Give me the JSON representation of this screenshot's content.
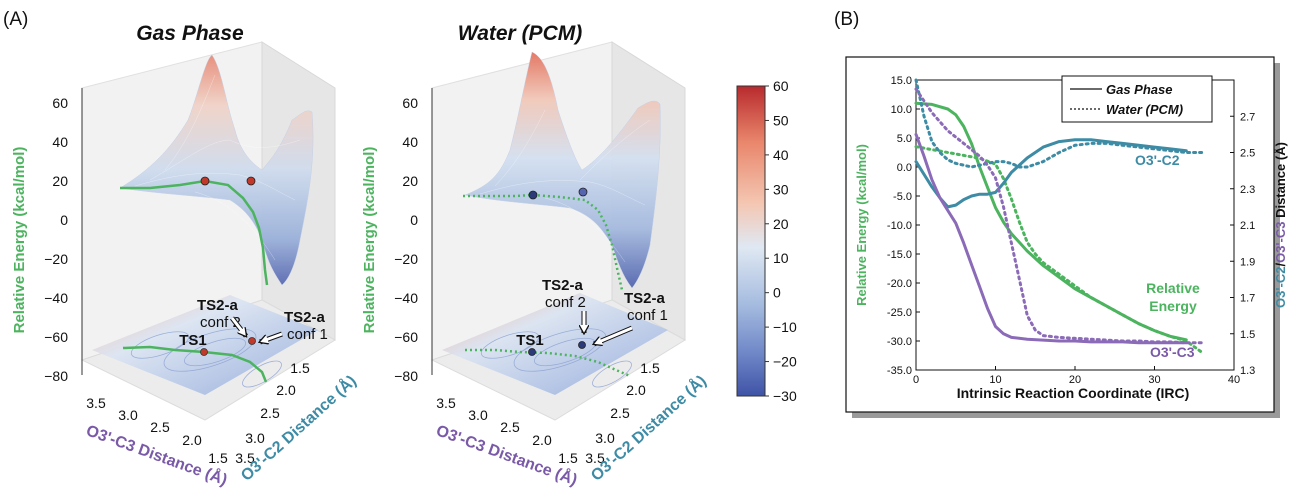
{
  "panel_labels": {
    "a": "(A)",
    "b": "(B)"
  },
  "colors": {
    "energy": "#4cb35f",
    "c2": "#3d8ba5",
    "c3": "#8b6bb8",
    "marker": "#c0392b",
    "marker_water": "#2d3a7a",
    "cmap_low": "#3f53a6",
    "cmap_mid": "#dfe8f3",
    "cmap_high": "#c0242a"
  },
  "chart_data": [
    {
      "type": "surface3d",
      "title": "Gas Phase",
      "ylabel": "Relative Energy (kcal/mol)",
      "zticks": [
        "60",
        "40",
        "20",
        "0",
        "−20",
        "−40",
        "−60",
        "−80"
      ],
      "zlim": [
        -80,
        60
      ],
      "axis_c3": {
        "label": "O3'-C3 Distance (Å)",
        "ticks": [
          "3.5",
          "3.0",
          "2.5",
          "2.0",
          "1.5"
        ]
      },
      "axis_c2": {
        "label": "O3'-C2 Distance (Å)",
        "ticks": [
          "3.5",
          "3.0",
          "2.5",
          "2.0",
          "1.5"
        ]
      },
      "annotations": {
        "ts1": "TS1",
        "ts2_conf2_a": "TS2-a",
        "ts2_conf2_b": "conf 2",
        "ts2_conf1_a": "TS2-a",
        "ts2_conf1_b": "conf 1"
      }
    },
    {
      "type": "surface3d",
      "title": "Water (PCM)",
      "ylabel": "Relative Energy (kcal/mol)",
      "zticks": [
        "60",
        "40",
        "20",
        "0",
        "−20",
        "−40",
        "−60",
        "−80"
      ],
      "zlim": [
        -80,
        60
      ],
      "axis_c3": {
        "label": "O3'-C3 Distance (Å)",
        "ticks": [
          "3.5",
          "3.0",
          "2.5",
          "2.0",
          "1.5"
        ]
      },
      "axis_c2": {
        "label": "O3'-C2 Distance (Å)",
        "ticks": [
          "3.5",
          "3.0",
          "2.5",
          "2.0",
          "1.5"
        ]
      },
      "annotations": {
        "ts1": "TS1",
        "ts2_conf2_a": "TS2-a",
        "ts2_conf2_b": "conf 2",
        "ts2_conf1_a": "TS2-a",
        "ts2_conf1_b": "conf 1"
      }
    },
    {
      "type": "colorbar",
      "range": [
        -30,
        60
      ],
      "ticks": [
        60,
        50,
        40,
        30,
        20,
        10,
        0,
        -10,
        -20,
        -30
      ],
      "tick_labels": [
        "60",
        "50",
        "40",
        "30",
        "20",
        "10",
        "0",
        "−10",
        "−20",
        "−30"
      ]
    },
    {
      "type": "line",
      "xlabel": "Intrinsic Reaction Coordinate (IRC)",
      "ylabel_left": "Relative Energy (kcal/mol)",
      "ylabel_right_parts": [
        "O3'-C2",
        "/",
        "O3'-C3",
        " Distance (Å)"
      ],
      "xlim": [
        0,
        40
      ],
      "xticks": [
        0,
        10,
        20,
        30,
        40
      ],
      "ylim_left": [
        -35,
        15
      ],
      "yticks_left": [
        15,
        10,
        5,
        0,
        -5,
        -10,
        -15,
        -20,
        -25,
        -30,
        -35
      ],
      "ytick_labels_left": [
        "15.0",
        "10.0",
        "5.0",
        "0.0",
        "-5.0",
        "-10.0",
        "-15.0",
        "-20.0",
        "-25.0",
        "-30.0",
        "-35.0"
      ],
      "ylim_right": [
        1.3,
        2.9
      ],
      "yticks_right": [
        2.7,
        2.5,
        2.3,
        2.1,
        1.9,
        1.7,
        1.5,
        1.3
      ],
      "ytick_labels_right": [
        "2.7",
        "2.5",
        "2.3",
        "2.1",
        "1.9",
        "1.7",
        "1.5",
        "1.3"
      ],
      "legend": {
        "position": "top-right",
        "solid": "Gas Phase",
        "dotted": "Water (PCM)"
      },
      "labels": {
        "c2": "O3'-C2",
        "energy_1": "Relative",
        "energy_2": "Energy",
        "c3": "O3'-C3"
      },
      "series": [
        {
          "key": "energy_gas",
          "axis": "left",
          "style": "solid",
          "color": "energy",
          "x": [
            0,
            2,
            4,
            5,
            6,
            7,
            8,
            9,
            10,
            11,
            12,
            13,
            14,
            16,
            18,
            20,
            22,
            24,
            26,
            28,
            30,
            32,
            34
          ],
          "y": [
            11,
            10.8,
            10,
            9,
            7,
            4,
            0,
            -3.5,
            -7,
            -9.5,
            -11.5,
            -13,
            -14.5,
            -17,
            -19,
            -21,
            -22.5,
            -24,
            -25.5,
            -27,
            -28.2,
            -29.2,
            -29.8
          ]
        },
        {
          "key": "energy_water",
          "axis": "left",
          "style": "dotted",
          "color": "energy",
          "x": [
            0,
            2,
            4,
            6,
            8,
            10,
            11,
            12,
            13,
            14,
            15,
            16,
            18,
            20,
            22,
            24,
            26,
            28,
            30,
            32,
            34,
            35,
            36
          ],
          "y": [
            3.5,
            3,
            2.5,
            2,
            1.5,
            0.5,
            -2,
            -5.5,
            -9.5,
            -13,
            -15,
            -16.5,
            -18.5,
            -20.5,
            -22.5,
            -24,
            -25.5,
            -27,
            -28.2,
            -29.2,
            -30,
            -31,
            -32
          ]
        },
        {
          "key": "c2_gas",
          "axis": "right",
          "style": "solid",
          "color": "c2",
          "x": [
            0,
            1,
            2,
            3,
            4,
            5,
            6,
            7,
            8,
            9,
            10,
            11,
            12,
            14,
            16,
            18,
            20,
            22,
            24,
            26,
            28,
            30,
            32,
            34
          ],
          "y": [
            2.45,
            2.38,
            2.31,
            2.25,
            2.2,
            2.21,
            2.24,
            2.26,
            2.27,
            2.27,
            2.28,
            2.33,
            2.39,
            2.47,
            2.53,
            2.56,
            2.57,
            2.57,
            2.56,
            2.55,
            2.54,
            2.53,
            2.52,
            2.51
          ]
        },
        {
          "key": "c2_water",
          "axis": "right",
          "style": "dotted",
          "color": "c2",
          "x": [
            0,
            1,
            2,
            3,
            4,
            5,
            6,
            7,
            8,
            9,
            10,
            11,
            12,
            13,
            14,
            16,
            18,
            20,
            22,
            24,
            26,
            28,
            30,
            32,
            34,
            36
          ],
          "y": [
            2.9,
            2.7,
            2.56,
            2.5,
            2.46,
            2.44,
            2.43,
            2.42,
            2.43,
            2.44,
            2.45,
            2.45,
            2.44,
            2.42,
            2.42,
            2.45,
            2.5,
            2.54,
            2.55,
            2.55,
            2.54,
            2.53,
            2.52,
            2.51,
            2.5,
            2.5
          ]
        },
        {
          "key": "c3_gas",
          "axis": "right",
          "style": "solid",
          "color": "c3",
          "x": [
            0,
            1,
            2,
            3,
            4,
            5,
            6,
            7,
            8,
            9,
            10,
            11,
            12,
            14,
            16,
            18,
            20,
            22,
            24,
            26,
            28,
            30,
            32,
            34
          ],
          "y": [
            2.6,
            2.48,
            2.35,
            2.25,
            2.18,
            2.11,
            2.0,
            1.88,
            1.76,
            1.64,
            1.54,
            1.5,
            1.48,
            1.47,
            1.465,
            1.46,
            1.46,
            1.455,
            1.455,
            1.455,
            1.45,
            1.45,
            1.45,
            1.45
          ]
        },
        {
          "key": "c3_water",
          "axis": "right",
          "style": "dotted",
          "color": "c3",
          "x": [
            0,
            2,
            4,
            6,
            8,
            9,
            10,
            11,
            12,
            13,
            14,
            15,
            16,
            18,
            20,
            22,
            24,
            26,
            28,
            30,
            32,
            34,
            36
          ],
          "y": [
            2.85,
            2.72,
            2.62,
            2.55,
            2.48,
            2.43,
            2.36,
            2.2,
            2.0,
            1.8,
            1.6,
            1.52,
            1.49,
            1.48,
            1.475,
            1.47,
            1.465,
            1.46,
            1.46,
            1.455,
            1.455,
            1.45,
            1.45
          ]
        }
      ]
    }
  ]
}
